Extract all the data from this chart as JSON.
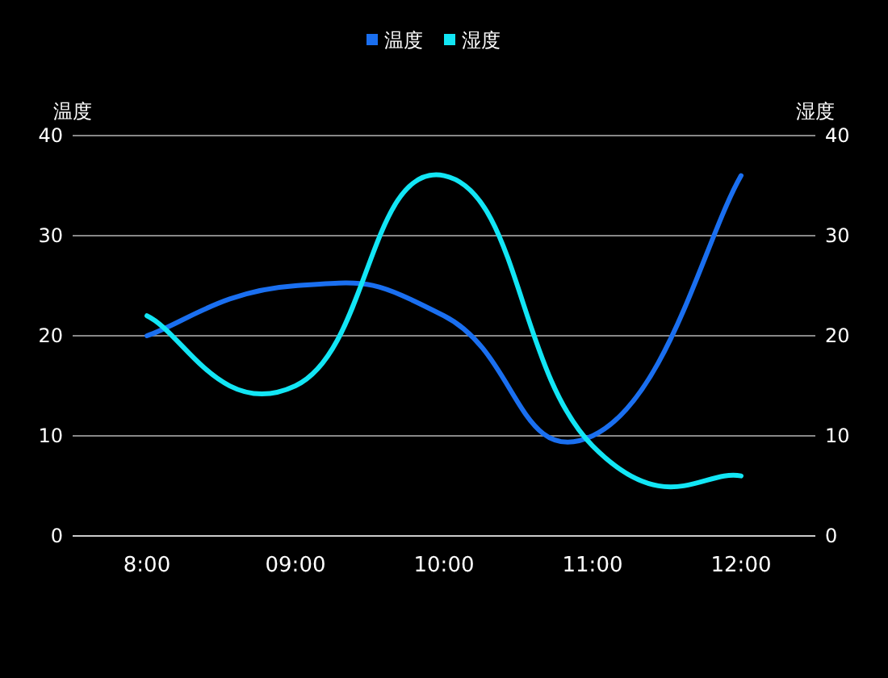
{
  "chart_data": {
    "type": "line",
    "categories": [
      "8:00",
      "09:00",
      "10:00",
      "11:00",
      "12:00"
    ],
    "series": [
      {
        "name": "温度",
        "color": "#1a6ff0",
        "values": [
          20,
          25,
          22,
          10,
          36
        ]
      },
      {
        "name": "湿度",
        "color": "#12e6f5",
        "values": [
          22,
          15,
          36,
          9,
          6
        ],
        "axis": "y2"
      }
    ],
    "ylabel": "温度",
    "y2label": "湿度",
    "ylim": [
      0,
      40
    ],
    "yticks": [
      0,
      10,
      20,
      30,
      40
    ],
    "y2lim": [
      0,
      40
    ],
    "y2ticks": [
      0,
      10,
      20,
      30,
      40
    ],
    "grid": "y",
    "legend": "top"
  }
}
